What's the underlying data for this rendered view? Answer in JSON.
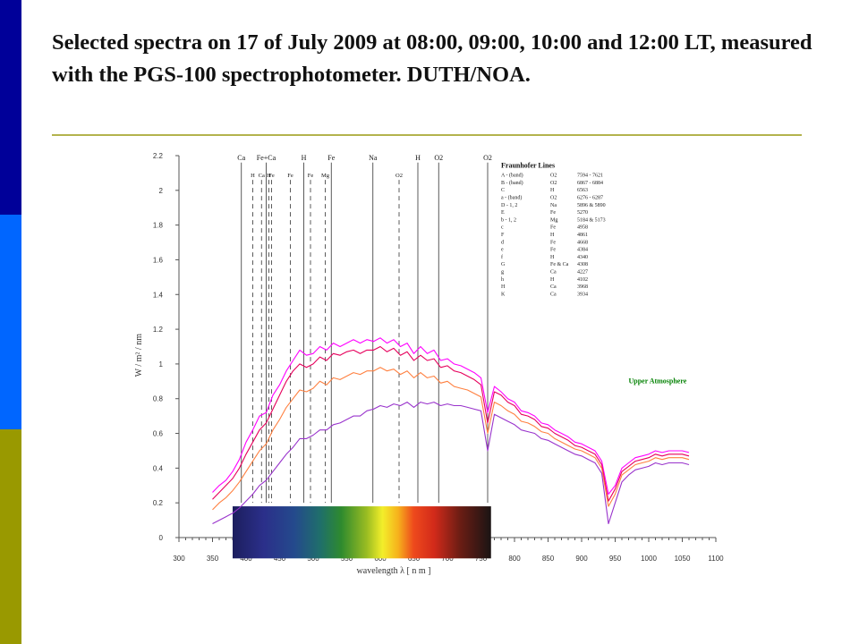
{
  "slide": {
    "title": "Selected spectra on 17 of July 2009 at 08:00, 09:00, 10:00 and 12:00 LT, measured with the PGS-100 spectrophotometer. DUTH/NOA.",
    "accent_colors": [
      "#000099",
      "#0066ff",
      "#999900"
    ],
    "rule_color": "#b3b34d"
  },
  "chart_data": {
    "type": "line",
    "title": "",
    "xlabel": "wavelength  λ    [ n m ]",
    "ylabel": "W / m² / nm",
    "xlim": [
      300,
      1100
    ],
    "ylim": [
      0,
      2.2
    ],
    "x_ticks": [
      300,
      350,
      400,
      450,
      500,
      550,
      600,
      650,
      700,
      750,
      800,
      850,
      900,
      950,
      1000,
      1050,
      1100
    ],
    "y_ticks": [
      0,
      0.2,
      0.4,
      0.6,
      0.8,
      1,
      1.2,
      1.4,
      1.6,
      1.8,
      2,
      2.2
    ],
    "y_tick_labels": [
      "0",
      "0.2",
      "0.4",
      "0.6",
      "0.8",
      "1",
      "1.2",
      "1.4",
      "1.6",
      "1.8",
      "2",
      "2.2"
    ],
    "grid": false,
    "annotation": "Upper Atmosphere",
    "annotation_color": "#008000",
    "x": [
      350,
      360,
      370,
      380,
      390,
      400,
      410,
      420,
      430,
      440,
      450,
      460,
      470,
      480,
      490,
      500,
      510,
      520,
      530,
      540,
      550,
      560,
      570,
      580,
      590,
      600,
      610,
      620,
      630,
      640,
      650,
      660,
      670,
      680,
      690,
      700,
      710,
      720,
      730,
      740,
      750,
      760,
      770,
      780,
      790,
      800,
      810,
      820,
      830,
      840,
      850,
      860,
      870,
      880,
      890,
      900,
      910,
      920,
      930,
      940,
      950,
      960,
      970,
      980,
      990,
      1000,
      1010,
      1020,
      1030,
      1040,
      1050,
      1060
    ],
    "series": [
      {
        "color": "#ff00ff",
        "values": [
          0.26,
          0.3,
          0.33,
          0.38,
          0.45,
          0.55,
          0.62,
          0.7,
          0.72,
          0.82,
          0.88,
          0.96,
          1.02,
          1.08,
          1.05,
          1.06,
          1.1,
          1.08,
          1.12,
          1.1,
          1.12,
          1.14,
          1.12,
          1.14,
          1.13,
          1.15,
          1.12,
          1.14,
          1.1,
          1.12,
          1.06,
          1.1,
          1.06,
          1.08,
          1.02,
          1.03,
          1.0,
          0.99,
          0.97,
          0.95,
          0.92,
          0.72,
          0.87,
          0.84,
          0.8,
          0.78,
          0.73,
          0.72,
          0.7,
          0.66,
          0.65,
          0.62,
          0.6,
          0.58,
          0.55,
          0.54,
          0.52,
          0.5,
          0.44,
          0.25,
          0.3,
          0.4,
          0.43,
          0.46,
          0.47,
          0.48,
          0.5,
          0.49,
          0.5,
          0.5,
          0.5,
          0.49
        ]
      },
      {
        "color": "#e6005c",
        "values": [
          0.22,
          0.26,
          0.3,
          0.34,
          0.4,
          0.48,
          0.55,
          0.62,
          0.66,
          0.74,
          0.82,
          0.9,
          0.96,
          1.0,
          0.98,
          1.0,
          1.04,
          1.02,
          1.06,
          1.05,
          1.07,
          1.08,
          1.06,
          1.08,
          1.08,
          1.1,
          1.07,
          1.09,
          1.05,
          1.07,
          1.02,
          1.05,
          1.02,
          1.03,
          0.98,
          0.99,
          0.96,
          0.95,
          0.93,
          0.91,
          0.88,
          0.66,
          0.84,
          0.82,
          0.78,
          0.76,
          0.71,
          0.7,
          0.68,
          0.64,
          0.63,
          0.6,
          0.58,
          0.56,
          0.53,
          0.52,
          0.5,
          0.48,
          0.42,
          0.21,
          0.28,
          0.38,
          0.41,
          0.44,
          0.45,
          0.46,
          0.48,
          0.47,
          0.48,
          0.48,
          0.48,
          0.47
        ]
      },
      {
        "color": "#ff8040",
        "values": [
          0.16,
          0.2,
          0.23,
          0.27,
          0.32,
          0.38,
          0.44,
          0.5,
          0.54,
          0.62,
          0.68,
          0.75,
          0.8,
          0.85,
          0.84,
          0.86,
          0.9,
          0.88,
          0.92,
          0.91,
          0.93,
          0.95,
          0.94,
          0.96,
          0.96,
          0.98,
          0.96,
          0.97,
          0.94,
          0.96,
          0.92,
          0.95,
          0.92,
          0.93,
          0.89,
          0.9,
          0.87,
          0.86,
          0.85,
          0.83,
          0.81,
          0.6,
          0.78,
          0.76,
          0.73,
          0.71,
          0.67,
          0.66,
          0.64,
          0.61,
          0.6,
          0.57,
          0.55,
          0.53,
          0.51,
          0.5,
          0.48,
          0.46,
          0.4,
          0.18,
          0.25,
          0.36,
          0.39,
          0.42,
          0.43,
          0.44,
          0.46,
          0.45,
          0.46,
          0.46,
          0.46,
          0.45
        ]
      },
      {
        "color": "#9933cc",
        "values": [
          0.08,
          0.1,
          0.12,
          0.14,
          0.17,
          0.21,
          0.25,
          0.3,
          0.33,
          0.38,
          0.43,
          0.48,
          0.52,
          0.57,
          0.57,
          0.59,
          0.62,
          0.62,
          0.65,
          0.66,
          0.68,
          0.7,
          0.7,
          0.73,
          0.74,
          0.76,
          0.75,
          0.77,
          0.76,
          0.78,
          0.75,
          0.78,
          0.77,
          0.78,
          0.76,
          0.77,
          0.76,
          0.76,
          0.75,
          0.74,
          0.73,
          0.5,
          0.71,
          0.69,
          0.67,
          0.65,
          0.62,
          0.61,
          0.6,
          0.57,
          0.56,
          0.54,
          0.52,
          0.5,
          0.48,
          0.47,
          0.45,
          0.43,
          0.37,
          0.08,
          0.2,
          0.32,
          0.36,
          0.39,
          0.4,
          0.41,
          0.43,
          0.42,
          0.43,
          0.43,
          0.43,
          0.42
        ]
      }
    ],
    "fraunhofer_markers": [
      {
        "label": "Ca",
        "x": 393,
        "row": "top",
        "style": "solid"
      },
      {
        "label": "Fe+Ca",
        "x": 430,
        "row": "top",
        "style": "solid"
      },
      {
        "label": "H",
        "x": 486,
        "row": "top",
        "style": "solid"
      },
      {
        "label": "Fe",
        "x": 527,
        "row": "top",
        "style": "solid"
      },
      {
        "label": "Na",
        "x": 589,
        "row": "top",
        "style": "solid"
      },
      {
        "label": "H",
        "x": 656,
        "row": "top",
        "style": "solid"
      },
      {
        "label": "O2",
        "x": 687,
        "row": "top",
        "style": "solid"
      },
      {
        "label": "O2",
        "x": 760,
        "row": "top",
        "style": "solid"
      },
      {
        "label": "H",
        "x": 410,
        "row": "second",
        "style": "dashed"
      },
      {
        "label": "Ca",
        "x": 423,
        "row": "second",
        "style": "dashed"
      },
      {
        "label": "H",
        "x": 434,
        "row": "second",
        "style": "dashed"
      },
      {
        "label": "Fe",
        "x": 438,
        "row": "second",
        "style": "dashed"
      },
      {
        "label": "Fe",
        "x": 466,
        "row": "second",
        "style": "dashed"
      },
      {
        "label": "Fe",
        "x": 496,
        "row": "second",
        "style": "dashed"
      },
      {
        "label": "Mg",
        "x": 518,
        "row": "second",
        "style": "dashed"
      },
      {
        "label": "O2",
        "x": 628,
        "row": "second",
        "style": "dashed"
      }
    ],
    "fraunhofer_table": {
      "title": "Fraunhofer Lines",
      "rows": [
        [
          "A - (band)",
          "O2",
          "7594 - 7621"
        ],
        [
          "B - (band)",
          "O2",
          "6867 - 6884"
        ],
        [
          "C",
          "H",
          "6563"
        ],
        [
          "a - (band)",
          "O2",
          "6276 - 6287"
        ],
        [
          "D - 1, 2",
          "Na",
          "5896 & 5890"
        ],
        [
          "E",
          "Fe",
          "5270"
        ],
        [
          "b - 1, 2",
          "Mg",
          "5184 & 5173"
        ],
        [
          "c",
          "Fe",
          "4958"
        ],
        [
          "F",
          "H",
          "4861"
        ],
        [
          "d",
          "Fe",
          "4668"
        ],
        [
          "e",
          "Fe",
          "4384"
        ],
        [
          "f",
          "H",
          "4340"
        ],
        [
          "G",
          "Fe & Ca",
          "4308"
        ],
        [
          "g",
          "Ca",
          "4227"
        ],
        [
          "h",
          "H",
          "4102"
        ],
        [
          "H",
          "Ca",
          "3968"
        ],
        [
          "K",
          "Ca",
          "3934"
        ]
      ]
    },
    "spectrum_strip": {
      "x_start": 380,
      "x_end": 765
    }
  }
}
